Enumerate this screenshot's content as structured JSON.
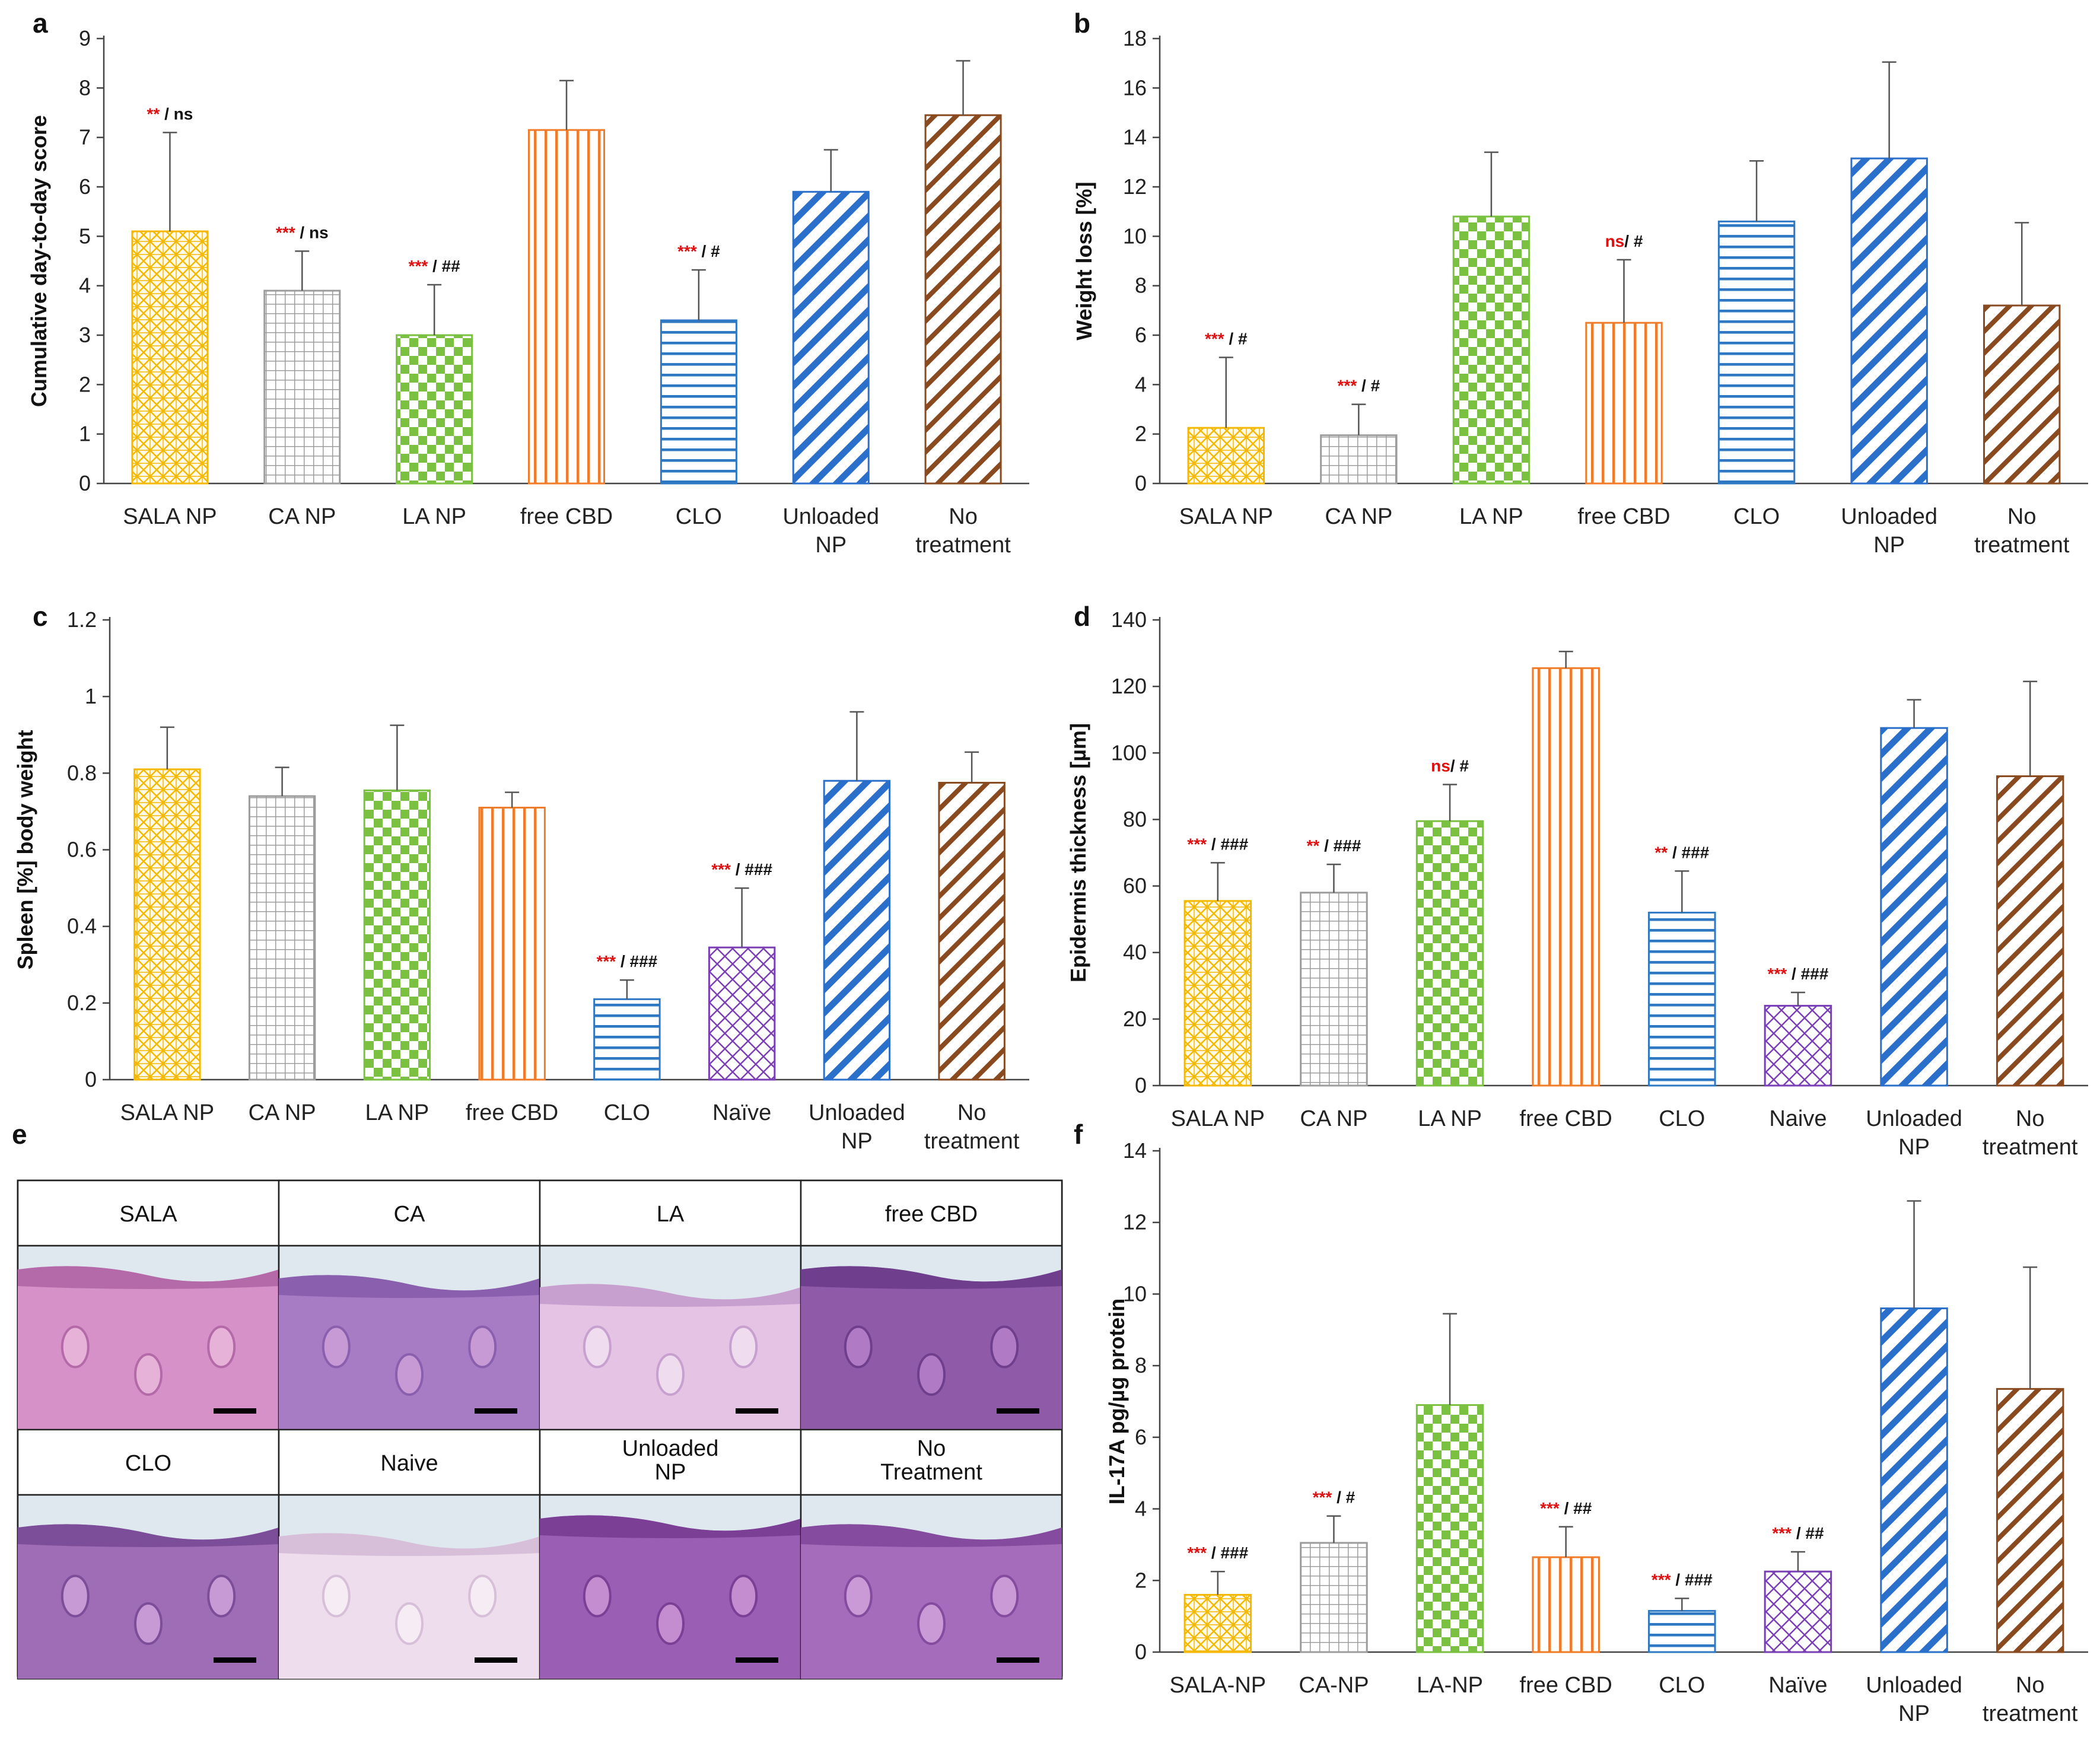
{
  "chart_data": [
    {
      "id": "a",
      "panel_label": "a",
      "type": "bar",
      "ylabel": "Cumulative day-to-day score",
      "ylim": [
        0,
        9
      ],
      "yticks": [
        "0",
        "1",
        "2",
        "3",
        "4",
        "5",
        "6",
        "7",
        "8",
        "9"
      ],
      "categories": [
        [
          "SALA NP"
        ],
        [
          "CA NP"
        ],
        [
          "LA NP"
        ],
        [
          "free CBD"
        ],
        [
          "CLO"
        ],
        [
          "Unloaded",
          "NP"
        ],
        [
          "No",
          "treatment"
        ]
      ],
      "values": [
        5.1,
        3.9,
        3.0,
        7.15,
        3.3,
        5.9,
        7.45
      ],
      "errors": [
        2.0,
        0.8,
        1.02,
        1.0,
        1.02,
        0.85,
        1.1
      ],
      "patterns": [
        "sala",
        "ca",
        "la",
        "cbd",
        "clo",
        "unl",
        "none"
      ],
      "annotations": [
        {
          "red": "**",
          "black": " / ns"
        },
        {
          "red": "***",
          "black": " / ns"
        },
        {
          "red": "***",
          "black": " / ##"
        },
        null,
        {
          "red": "***",
          "black": " / #"
        },
        null,
        null
      ]
    },
    {
      "id": "b",
      "panel_label": "b",
      "type": "bar",
      "ylabel": "Weight loss [%]",
      "ylim": [
        0,
        18
      ],
      "yticks": [
        "0",
        "2",
        "4",
        "6",
        "8",
        "10",
        "12",
        "14",
        "16",
        "18"
      ],
      "categories": [
        [
          "SALA NP"
        ],
        [
          "CA NP"
        ],
        [
          "LA NP"
        ],
        [
          "free CBD"
        ],
        [
          "CLO"
        ],
        [
          "Unloaded",
          "NP"
        ],
        [
          "No",
          "treatment"
        ]
      ],
      "values": [
        2.25,
        1.95,
        10.8,
        6.5,
        10.6,
        13.15,
        7.2
      ],
      "errors": [
        2.85,
        1.25,
        2.6,
        2.55,
        2.45,
        3.9,
        3.35
      ],
      "patterns": [
        "sala",
        "ca",
        "la",
        "cbd",
        "clo",
        "unl",
        "none"
      ],
      "annotations": [
        {
          "red": "***",
          "black": " / #"
        },
        {
          "red": "***",
          "black": " / #"
        },
        null,
        {
          "red": "ns",
          "black": "/ #"
        },
        null,
        null,
        null
      ]
    },
    {
      "id": "c",
      "panel_label": "c",
      "type": "bar",
      "ylabel": "Spleen [%] body weight",
      "ylim": [
        0,
        1.2
      ],
      "yticks": [
        "0",
        "0.2",
        "0.4",
        "0.6",
        "0.8",
        "1",
        "1.2"
      ],
      "categories": [
        [
          "SALA NP"
        ],
        [
          "CA NP"
        ],
        [
          "LA NP"
        ],
        [
          "free CBD"
        ],
        [
          "CLO"
        ],
        [
          "Naïve"
        ],
        [
          "Unloaded",
          "NP"
        ],
        [
          "No",
          "treatment"
        ]
      ],
      "values": [
        0.81,
        0.74,
        0.755,
        0.71,
        0.21,
        0.345,
        0.78,
        0.775
      ],
      "errors": [
        0.11,
        0.075,
        0.17,
        0.04,
        0.05,
        0.155,
        0.18,
        0.08
      ],
      "patterns": [
        "sala",
        "ca",
        "la",
        "cbd",
        "clo",
        "naive",
        "unl",
        "none"
      ],
      "annotations": [
        null,
        null,
        null,
        null,
        {
          "red": "***",
          "black": " / ###"
        },
        {
          "red": "***",
          "black": " / ###"
        },
        null,
        null
      ]
    },
    {
      "id": "d",
      "panel_label": "d",
      "type": "bar",
      "ylabel": "Epidermis thickness [µm]",
      "ylim": [
        0,
        140
      ],
      "yticks": [
        "0",
        "20",
        "40",
        "60",
        "80",
        "100",
        "120",
        "140"
      ],
      "categories": [
        [
          "SALA NP"
        ],
        [
          "CA NP"
        ],
        [
          "LA NP"
        ],
        [
          "free CBD"
        ],
        [
          "CLO"
        ],
        [
          "Naive"
        ],
        [
          "Unloaded",
          "NP"
        ],
        [
          "No",
          "treatment"
        ]
      ],
      "values": [
        55.5,
        58.0,
        79.5,
        125.5,
        52.0,
        24.0,
        107.5,
        93.0
      ],
      "errors": [
        11.5,
        8.5,
        11.0,
        5.0,
        12.5,
        4.0,
        8.5,
        28.5
      ],
      "patterns": [
        "sala",
        "ca",
        "la",
        "cbd",
        "clo",
        "naive",
        "unl",
        "none"
      ],
      "annotations": [
        {
          "red": "***",
          "black": " / ###"
        },
        {
          "red": "**",
          "black": " / ###"
        },
        {
          "red": "ns",
          "black": "/ #"
        },
        null,
        {
          "red": "**",
          "black": " / ###"
        },
        {
          "red": "***",
          "black": " / ###"
        },
        null,
        null
      ]
    },
    {
      "id": "f",
      "panel_label": "f",
      "type": "bar",
      "ylabel": "IL-17A pg/µg protein",
      "ylim": [
        0,
        14
      ],
      "yticks": [
        "0",
        "2",
        "4",
        "6",
        "8",
        "10",
        "12",
        "14"
      ],
      "categories": [
        [
          "SALA-NP"
        ],
        [
          "CA-NP"
        ],
        [
          "LA-NP"
        ],
        [
          "free CBD"
        ],
        [
          "CLO"
        ],
        [
          "Naïve"
        ],
        [
          "Unloaded",
          "NP"
        ],
        [
          "No",
          "treatment"
        ]
      ],
      "values": [
        1.6,
        3.05,
        6.9,
        2.65,
        1.15,
        2.25,
        9.6,
        7.35
      ],
      "errors": [
        0.65,
        0.75,
        2.55,
        0.85,
        0.35,
        0.55,
        3.0,
        3.4
      ],
      "patterns": [
        "sala",
        "ca",
        "la",
        "cbd",
        "clo",
        "naive",
        "unl",
        "none"
      ],
      "annotations": [
        {
          "red": "***",
          "black": " / ###"
        },
        {
          "red": "***",
          "black": " / #"
        },
        null,
        {
          "red": "***",
          "black": " / ##"
        },
        {
          "red": "***",
          "black": " / ###"
        },
        {
          "red": "***",
          "black": " / ##"
        },
        null,
        null
      ]
    }
  ],
  "histology": {
    "panel_label": "e",
    "row1_labels": [
      "SALA",
      "CA",
      "LA",
      "free CBD"
    ],
    "row2_labels": [
      [
        "CLO"
      ],
      [
        "Naive"
      ],
      [
        "Unloaded",
        "NP"
      ],
      [
        "No",
        "Treatment"
      ]
    ]
  },
  "colors": {
    "sala": "#f5b800",
    "ca": "#9c9c9c",
    "la": "#7ac142",
    "cbd": "#f07c2a",
    "clo": "#2e78c4",
    "naive": "#7a3fb5",
    "unl": "#2a6fc9",
    "none": "#8a4a20"
  }
}
